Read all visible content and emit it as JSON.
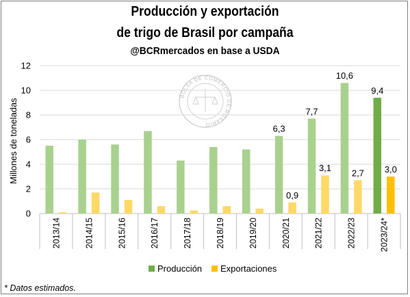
{
  "chart_data": {
    "type": "bar",
    "title_line1": "Producción y exportación",
    "title_line2": "de trigo de Brasil por campaña",
    "subtitle": "@BCRmercados en base a USDA",
    "ylabel": "Millones de toneladas",
    "xlabel": "",
    "ylim": [
      0,
      12
    ],
    "yticks": [
      0,
      2,
      4,
      6,
      8,
      10,
      12
    ],
    "grid": true,
    "legend_position": "bottom",
    "categories": [
      "2013/14",
      "2014/15",
      "2015/16",
      "2016/17",
      "2017/18",
      "2018/19",
      "2019/20",
      "2020/21",
      "2021/22",
      "2022/23",
      "2023/24*"
    ],
    "series": [
      {
        "name": "Producción",
        "values": [
          5.5,
          6.0,
          5.6,
          6.7,
          4.3,
          5.4,
          5.2,
          6.3,
          7.7,
          10.6,
          9.4
        ],
        "labels": [
          "",
          "",
          "",
          "",
          "",
          "",
          "",
          "6,3",
          "7,7",
          "10,6",
          "9,4"
        ]
      },
      {
        "name": "Exportaciones",
        "values": [
          0.1,
          1.7,
          1.1,
          0.6,
          0.25,
          0.6,
          0.4,
          0.9,
          3.1,
          2.7,
          3.0
        ],
        "labels": [
          "",
          "",
          "",
          "",
          "",
          "",
          "",
          "0,9",
          "3,1",
          "2,7",
          "3,0"
        ]
      }
    ],
    "colors": {
      "production": "#a9d18e",
      "production_estimated": "#70ad47",
      "exports": "#ffd966",
      "exports_estimated": "#ffc000",
      "grid": "#d9d9d9"
    }
  },
  "footnote": "* Datos estimados.",
  "watermark": "BOLSA DE COMERCIO DE ROSARIO"
}
